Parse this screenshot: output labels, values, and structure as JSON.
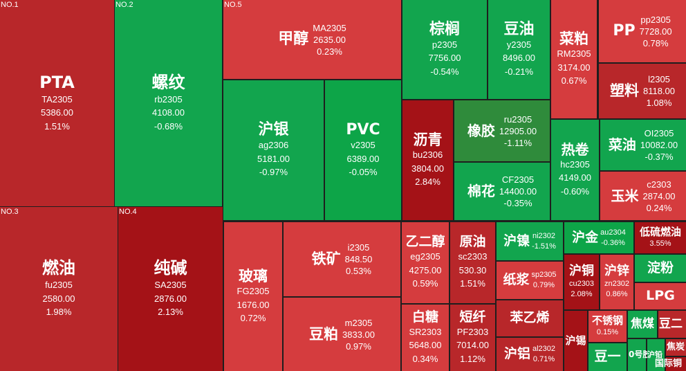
{
  "colors": {
    "red_strong": "#a41217",
    "red_mid": "#b8272a",
    "red_light": "#d53c3e",
    "green_bright": "#0da548",
    "green_mid": "#12a54e",
    "green_dark": "#2f8b3b",
    "border": "#1e1e1e"
  },
  "tiles": [
    {
      "rank": "NO.1",
      "name": "PTA",
      "code": "TA2305",
      "price": "5386.00",
      "change": "1.51%"
    },
    {
      "rank": "NO.2",
      "name": "螺纹",
      "code": "rb2305",
      "price": "4108.00",
      "change": "-0.68%"
    },
    {
      "rank": "NO.3",
      "name": "燃油",
      "code": "fu2305",
      "price": "2580.00",
      "change": "1.98%"
    },
    {
      "rank": "NO.4",
      "name": "纯碱",
      "code": "SA2305",
      "price": "2876.00",
      "change": "2.13%"
    },
    {
      "rank": "NO.5",
      "name": "甲醇",
      "code": "MA2305",
      "price": "2635.00",
      "change": "0.23%"
    },
    {
      "name": "沪银",
      "code": "ag2306",
      "price": "5181.00",
      "change": "-0.97%"
    },
    {
      "name": "PVC",
      "code": "v2305",
      "price": "6389.00",
      "change": "-0.05%"
    },
    {
      "name": "棕榈",
      "code": "p2305",
      "price": "7756.00",
      "change": "-0.54%"
    },
    {
      "name": "豆油",
      "code": "y2305",
      "price": "8496.00",
      "change": "-0.21%"
    },
    {
      "name": "菜粕",
      "code": "RM2305",
      "price": "3174.00",
      "change": "0.67%"
    },
    {
      "name": "PP",
      "code": "pp2305",
      "price": "7728.00",
      "change": "0.78%"
    },
    {
      "name": "塑料",
      "code": "l2305",
      "price": "8118.00",
      "change": "1.08%"
    },
    {
      "name": "沥青",
      "code": "bu2306",
      "price": "3804.00",
      "change": "2.84%"
    },
    {
      "name": "橡胶",
      "code": "ru2305",
      "price": "12905.00",
      "change": "-1.11%"
    },
    {
      "name": "棉花",
      "code": "CF2305",
      "price": "14400.00",
      "change": "-0.35%"
    },
    {
      "name": "热卷",
      "code": "hc2305",
      "price": "4149.00",
      "change": "-0.60%"
    },
    {
      "name": "菜油",
      "code": "OI2305",
      "price": "10082.00",
      "change": "-0.37%"
    },
    {
      "name": "玉米",
      "code": "c2303",
      "price": "2874.00",
      "change": "0.24%"
    },
    {
      "name": "玻璃",
      "code": "FG2305",
      "price": "1676.00",
      "change": "0.72%"
    },
    {
      "name": "铁矿",
      "code": "i2305",
      "price": "848.50",
      "change": "0.53%"
    },
    {
      "name": "豆粕",
      "code": "m2305",
      "price": "3833.00",
      "change": "0.97%"
    },
    {
      "name": "乙二醇",
      "code": "eg2305",
      "price": "4275.00",
      "change": "0.59%"
    },
    {
      "name": "原油",
      "code": "sc2303",
      "price": "530.30",
      "change": "1.51%"
    },
    {
      "name": "白糖",
      "code": "SR2303",
      "price": "5648.00",
      "change": "0.34%"
    },
    {
      "name": "短纤",
      "code": "PF2303",
      "price": "7014.00",
      "change": "1.12%"
    },
    {
      "name": "沪镍",
      "code": "ni2302",
      "price": "",
      "change": "-1.51%"
    },
    {
      "name": "纸浆",
      "code": "sp2305",
      "price": "",
      "change": "0.79%"
    },
    {
      "name": "苯乙烯",
      "code": "",
      "price": "",
      "change": ""
    },
    {
      "name": "沪铝",
      "code": "al2302",
      "price": "",
      "change": "0.71%"
    },
    {
      "name": "沪金",
      "code": "au2304",
      "price": "",
      "change": "-0.36%"
    },
    {
      "name": "低硫燃油",
      "code": "",
      "price": "",
      "change": "3.55%"
    },
    {
      "name": "沪铜",
      "code": "cu2303",
      "price": "",
      "change": "2.08%"
    },
    {
      "name": "沪锌",
      "code": "zn2302",
      "price": "",
      "change": "0.86%"
    },
    {
      "name": "淀粉",
      "code": "",
      "price": "",
      "change": ""
    },
    {
      "name": "LPG",
      "code": "",
      "price": "",
      "change": ""
    },
    {
      "name": "沪锡",
      "code": "",
      "price": "",
      "change": ""
    },
    {
      "name": "不锈钢",
      "code": "",
      "price": "",
      "change": "0.15%"
    },
    {
      "name": "焦煤",
      "code": "",
      "price": "",
      "change": ""
    },
    {
      "name": "豆二",
      "code": "",
      "price": "",
      "change": ""
    },
    {
      "name": "豆一",
      "code": "",
      "price": "",
      "change": ""
    },
    {
      "name": "0号胶",
      "code": "",
      "price": "",
      "change": ""
    },
    {
      "name": "沪铅",
      "code": "",
      "price": "",
      "change": ""
    },
    {
      "name": "焦炭",
      "code": "",
      "price": "",
      "change": ""
    },
    {
      "name": "国际铜",
      "code": "",
      "price": "",
      "change": ""
    }
  ]
}
